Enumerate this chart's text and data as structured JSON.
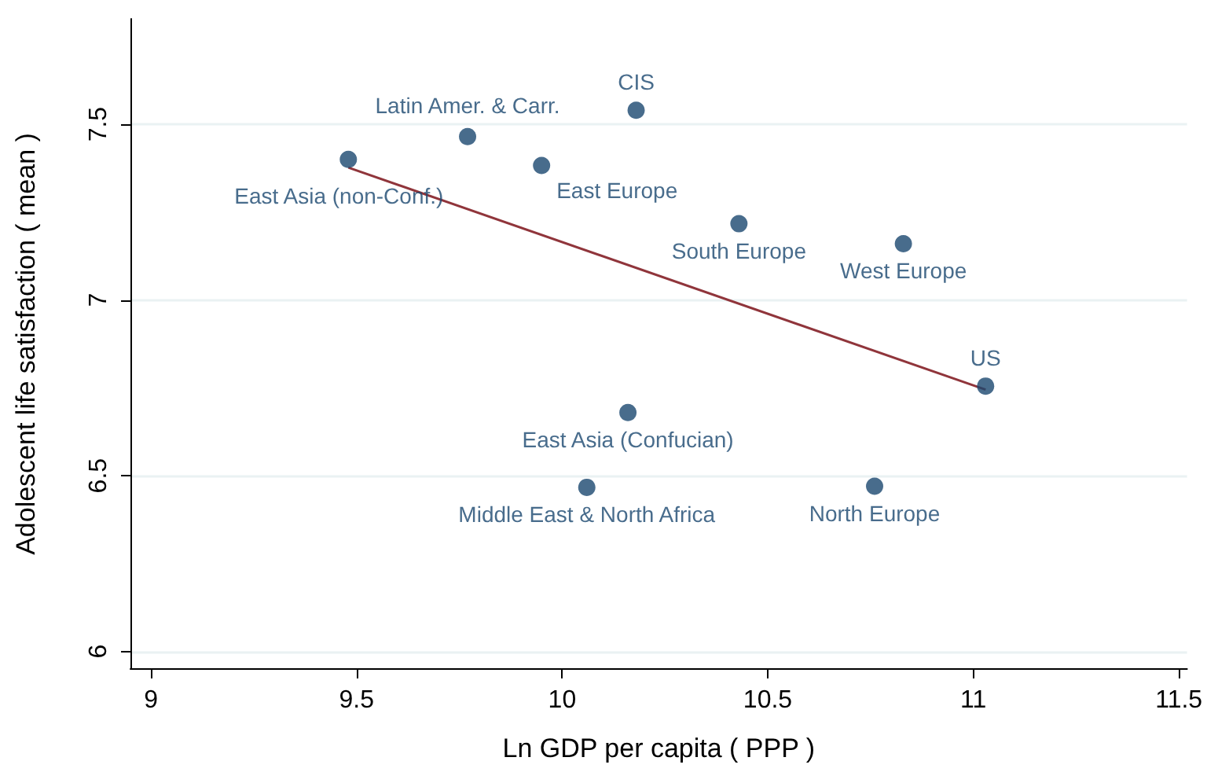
{
  "chart_data": {
    "type": "scatter",
    "xlabel": "Ln GDP per capita ( PPP )",
    "ylabel": "Adolescent life satisfaction ( mean )",
    "xlim": [
      8.95,
      11.52
    ],
    "xticks": [
      9,
      9.5,
      10,
      10.5,
      11,
      11.5
    ],
    "ylim": [
      5.95,
      7.8
    ],
    "yticks": [
      6,
      6.5,
      7,
      7.5
    ],
    "grid": "y",
    "marker": "circle",
    "series": [
      {
        "color": "#1a476f",
        "x": [
          9.48,
          9.77,
          10.18,
          9.95,
          10.43,
          10.83,
          11.03,
          10.16,
          10.06,
          10.76
        ],
        "values": [
          7.4,
          7.465,
          7.54,
          7.383,
          7.217,
          7.16,
          6.755,
          6.68,
          6.467,
          6.47
        ]
      },
      {
        "type": "line",
        "marker": "none",
        "color": "#90353b",
        "x": [
          9.48,
          11.03
        ],
        "values": [
          7.377,
          6.745
        ]
      }
    ],
    "annotations": [
      {
        "text": "East Asia (non-Conf.)",
        "x": 9.48,
        "y": 7.4
      },
      {
        "text": "Latin Amer. & Carr.",
        "x": 9.77,
        "y": 7.465
      },
      {
        "text": "CIS",
        "x": 10.18,
        "y": 7.54
      },
      {
        "text": "East Europe",
        "x": 9.95,
        "y": 7.383
      },
      {
        "text": "South Europe",
        "x": 10.43,
        "y": 7.217
      },
      {
        "text": "West Europe",
        "x": 10.83,
        "y": 7.16
      },
      {
        "text": "US",
        "x": 11.03,
        "y": 6.755
      },
      {
        "text": "East Asia (Confucian)",
        "x": 10.16,
        "y": 6.68
      },
      {
        "text": "Middle East & North Africa",
        "x": 10.06,
        "y": 6.467
      },
      {
        "text": "North Europe",
        "x": 10.76,
        "y": 6.47
      }
    ]
  }
}
